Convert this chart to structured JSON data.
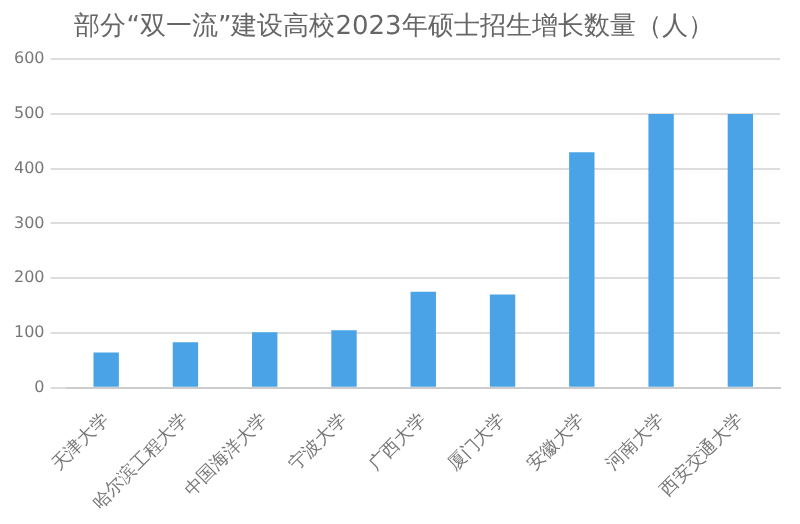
{
  "chart_data": {
    "type": "bar",
    "title": "部分“双一流”建设高校2023年硕士招生增长数量（人）",
    "categories": [
      "天津大学",
      "哈尔滨工程大学",
      "中国海洋大学",
      "宁波大学",
      "广西大学",
      "厦门大学",
      "安徽大学",
      "河南大学",
      "西安交通大学"
    ],
    "values": [
      64,
      83,
      101,
      105,
      175,
      170,
      430,
      500,
      500
    ],
    "color": "#4aa3e6",
    "ylim": [
      0,
      600
    ],
    "yticks": [
      0,
      100,
      200,
      300,
      400,
      500,
      600
    ],
    "grid": "y"
  }
}
